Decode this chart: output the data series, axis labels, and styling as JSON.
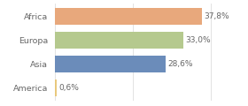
{
  "categories": [
    "Africa",
    "Europa",
    "Asia",
    "America"
  ],
  "values": [
    37.8,
    33.0,
    28.6,
    0.6
  ],
  "labels": [
    "37,8%",
    "33,0%",
    "28,6%",
    "0,6%"
  ],
  "bar_colors": [
    "#e8a87c",
    "#b5c98e",
    "#6b8cba",
    "#e8c87c"
  ],
  "background_color": "#ffffff",
  "xlim": [
    0,
    42
  ],
  "bar_height": 0.72,
  "label_fontsize": 6.5,
  "tick_fontsize": 6.8,
  "label_color": "#666666",
  "grid_color": "#dddddd"
}
